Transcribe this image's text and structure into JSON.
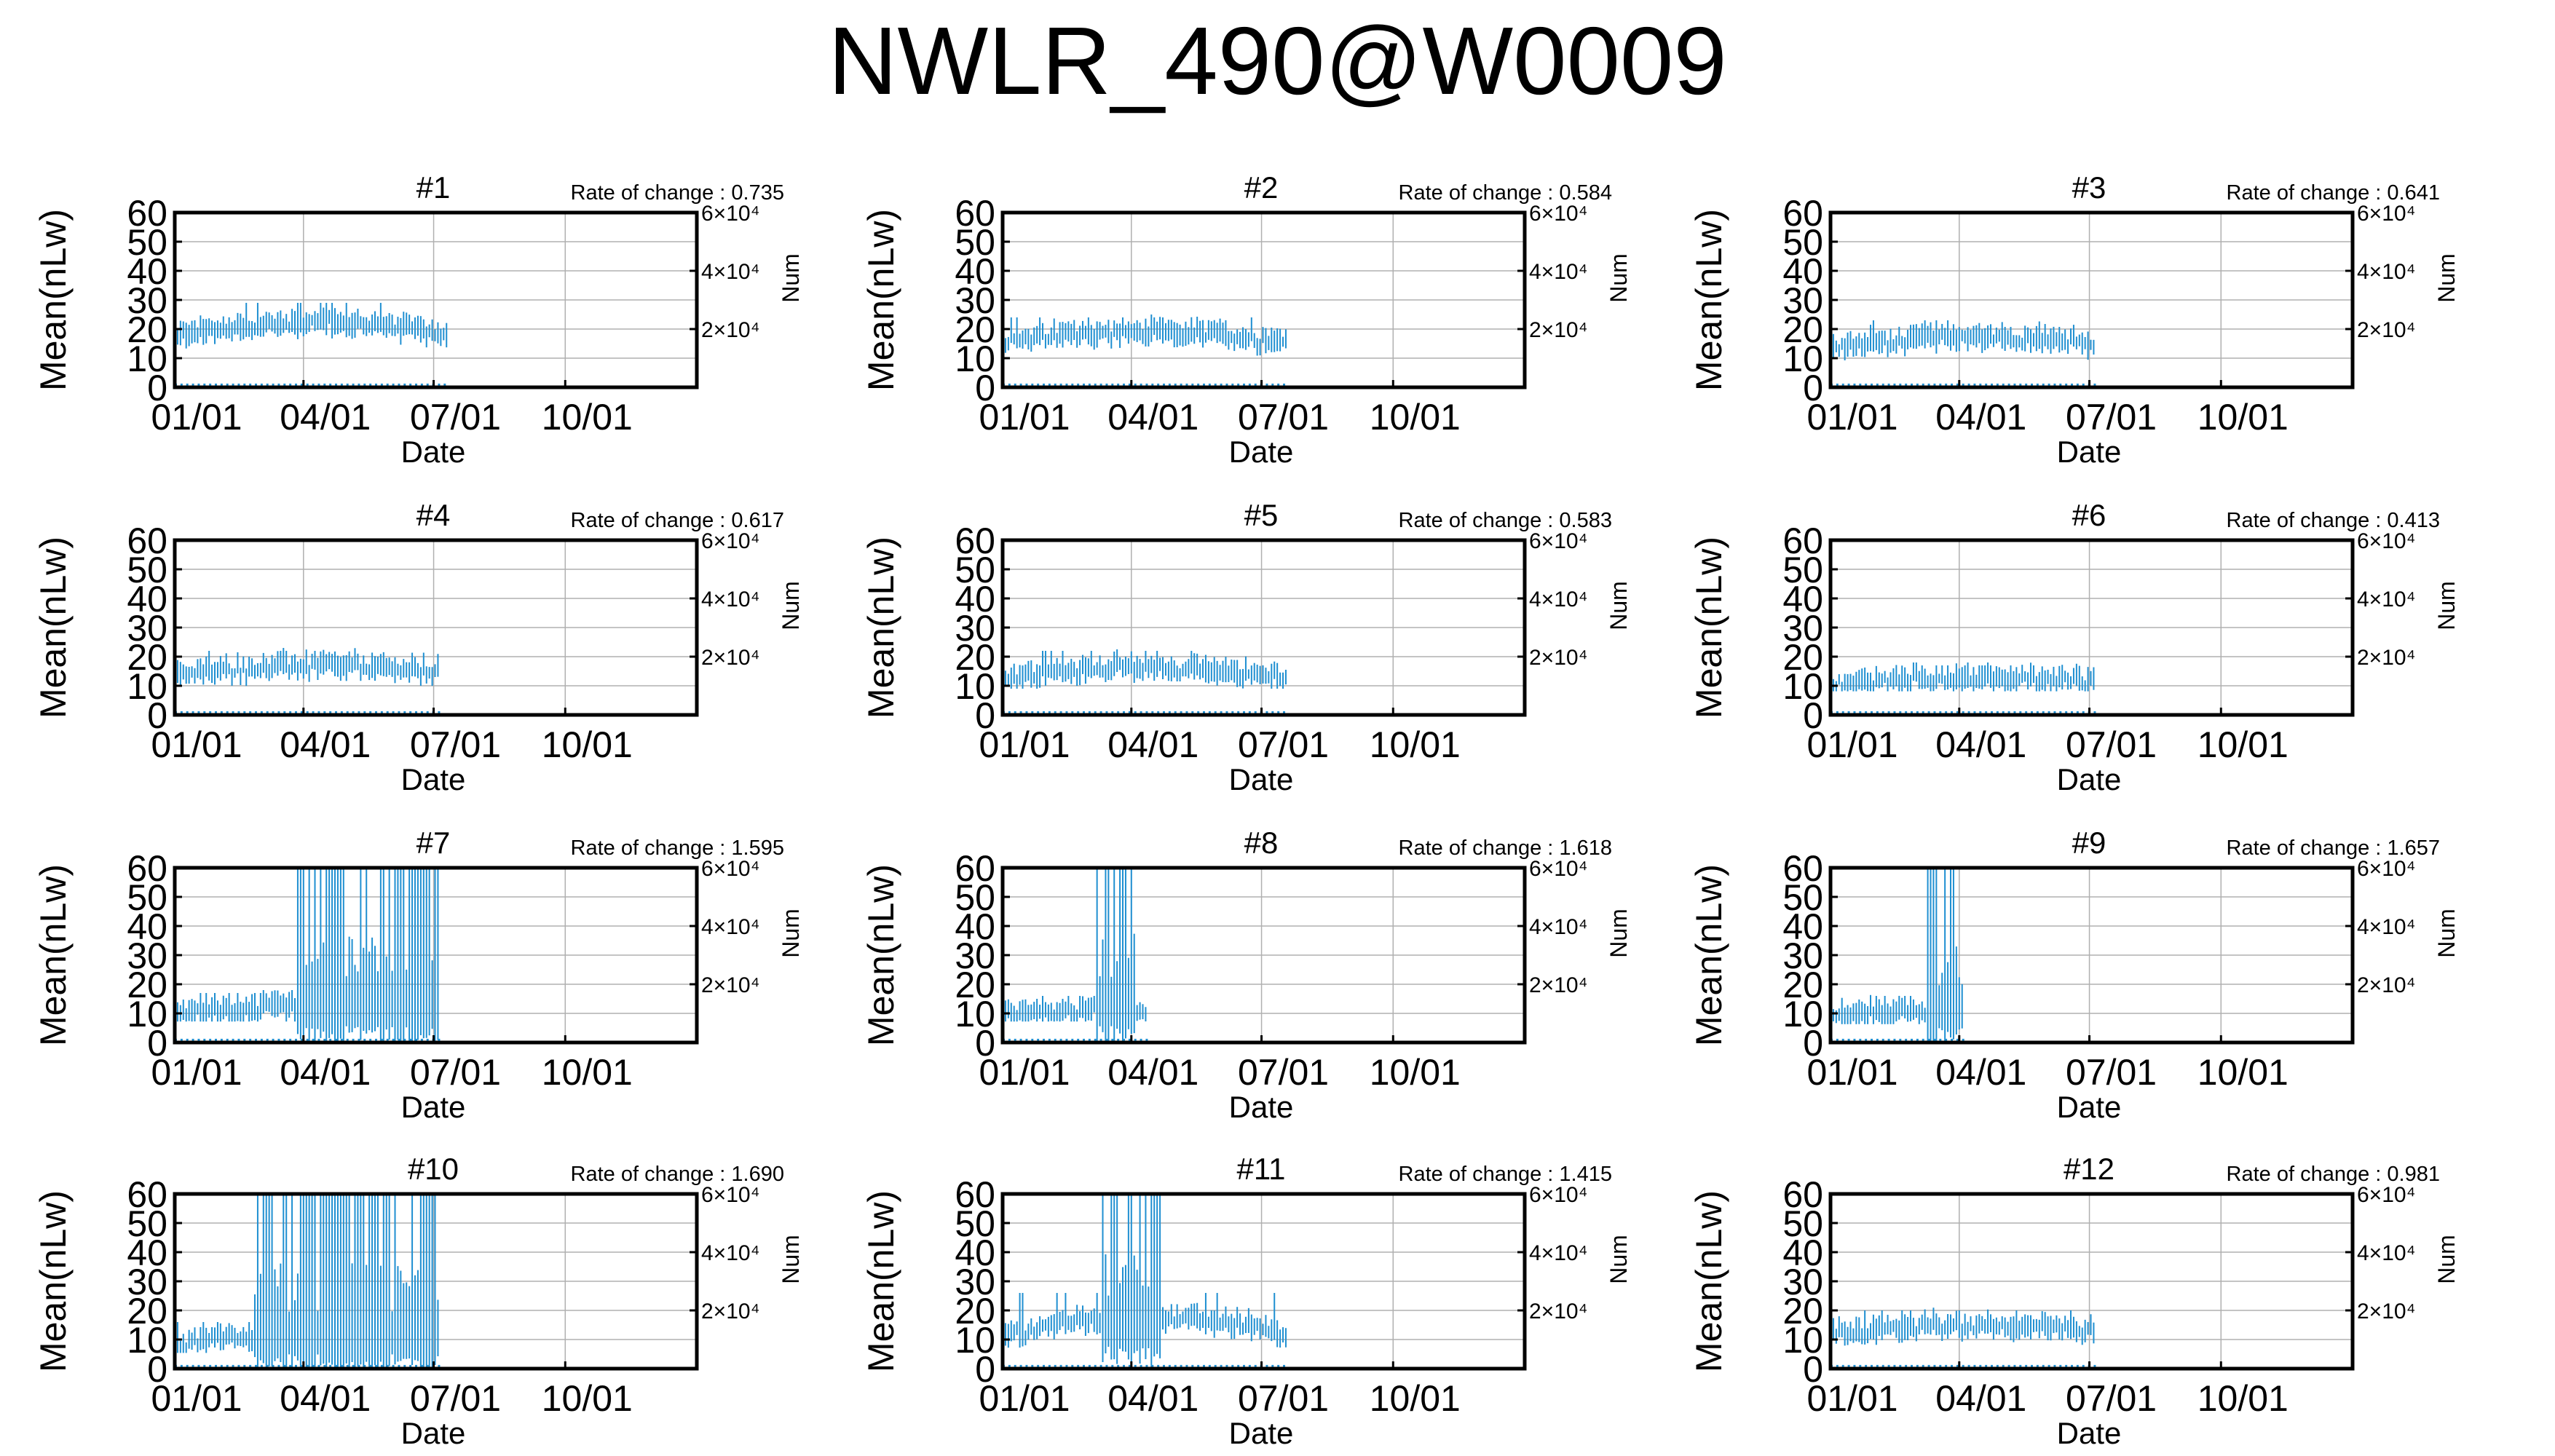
{
  "page_title": "NWLR_490@W0009",
  "colors": {
    "series": "#1f8fd1",
    "grid": "#b0b0b0",
    "axis": "#000000"
  },
  "chart_data": [
    {
      "panel_title": "#1",
      "rate_text": "Rate of change : 0.735",
      "level": 18,
      "base": 14,
      "peak": 27,
      "spike_from": null,
      "spike_to": null,
      "end_doy": 191
    },
    {
      "panel_title": "#2",
      "rate_text": "Rate of change : 0.584",
      "level": 16,
      "base": 12,
      "peak": 22,
      "spike_from": null,
      "spike_to": null,
      "end_doy": 199
    },
    {
      "panel_title": "#3",
      "rate_text": "Rate of change : 0.641",
      "level": 14,
      "base": 10,
      "peak": 21,
      "spike_from": null,
      "spike_to": null,
      "end_doy": 185
    },
    {
      "panel_title": "#4",
      "rate_text": "Rate of change : 0.617",
      "level": 14,
      "base": 10,
      "peak": 20,
      "spike_from": null,
      "spike_to": null,
      "end_doy": 185
    },
    {
      "panel_title": "#5",
      "rate_text": "Rate of change : 0.583",
      "level": 13,
      "base": 10,
      "peak": 20,
      "spike_from": null,
      "spike_to": null,
      "end_doy": 199
    },
    {
      "panel_title": "#6",
      "rate_text": "Rate of change : 0.413",
      "level": 11,
      "base": 9,
      "peak": 15,
      "spike_from": null,
      "spike_to": null,
      "end_doy": 185
    },
    {
      "panel_title": "#7",
      "rate_text": "Rate of change : 1.595",
      "level": 10,
      "base": 8,
      "peak": 15,
      "spike_from": 85,
      "spike_to": 185,
      "end_doy": 185
    },
    {
      "panel_title": "#8",
      "rate_text": "Rate of change : 1.618",
      "level": 10,
      "base": 8,
      "peak": 13,
      "spike_from": 65,
      "spike_to": 92,
      "end_doy": 100
    },
    {
      "panel_title": "#9",
      "rate_text": "Rate of change : 1.657",
      "level": 9,
      "base": 7,
      "peak": 14,
      "spike_from": 68,
      "spike_to": 92,
      "end_doy": 92
    },
    {
      "panel_title": "#10",
      "rate_text": "Rate of change : 1.690",
      "level": 9,
      "base": 6,
      "peak": 14,
      "spike_from": 55,
      "spike_to": 185,
      "end_doy": 185
    },
    {
      "panel_title": "#11",
      "rate_text": "Rate of change : 1.415",
      "level": 12,
      "base": 8,
      "peak": 24,
      "spike_from": 70,
      "spike_to": 110,
      "end_doy": 199
    },
    {
      "panel_title": "#12",
      "rate_text": "Rate of change : 0.981",
      "level": 12,
      "base": 8,
      "peak": 18,
      "spike_from": null,
      "spike_to": null,
      "end_doy": 185
    }
  ],
  "axes": {
    "ylabel": "Mean(nLw)",
    "xlabel": "Date",
    "y2label": "Num",
    "yticks": [
      "0",
      "10",
      "20",
      "30",
      "40",
      "50",
      "60"
    ],
    "ylim": [
      0,
      60
    ],
    "xticks": [
      "01/01",
      "04/01",
      "07/01",
      "10/01"
    ],
    "xtick_doy": [
      0,
      90,
      181,
      273
    ],
    "xlim_doy": [
      0,
      365
    ],
    "y2ticks": [
      "2×10⁴",
      "4×10⁴",
      "6×10⁴"
    ],
    "y2lim": [
      0,
      60000
    ],
    "grid": true
  }
}
